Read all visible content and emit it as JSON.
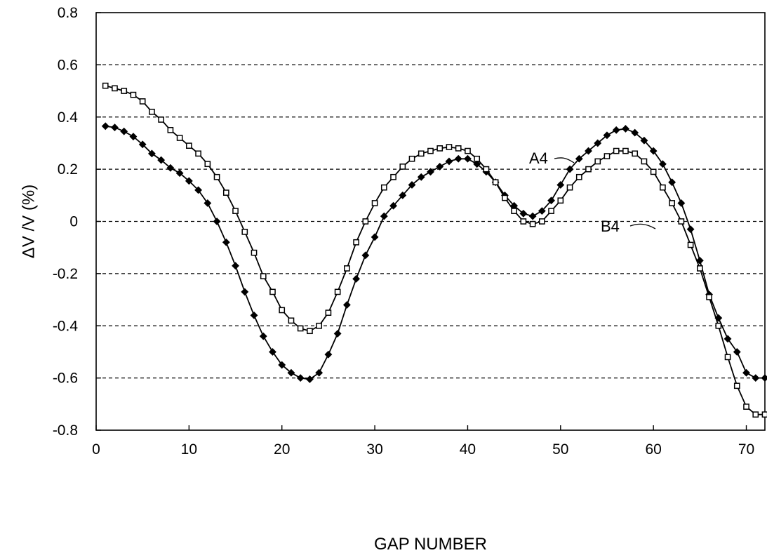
{
  "chart_data": {
    "type": "line",
    "title": "",
    "xlabel": "GAP NUMBER",
    "ylabel": "ΔV /V  (%)",
    "xlim": [
      0,
      72
    ],
    "ylim": [
      -0.8,
      0.8
    ],
    "x_ticks": [
      0,
      10,
      20,
      30,
      40,
      50,
      60,
      70
    ],
    "y_ticks": [
      -0.8,
      -0.6,
      -0.4,
      -0.2,
      0,
      0.2,
      0.4,
      0.6,
      0.8
    ],
    "x_tick_labels": [
      "0",
      "10",
      "20",
      "30",
      "40",
      "50",
      "60",
      "70"
    ],
    "y_tick_labels": [
      "-0.8",
      "-0.6",
      "-0.4",
      "-0.2",
      "0",
      "0.2",
      "0.4",
      "0.6",
      "0.8"
    ],
    "grid": "horizontal dashed",
    "series": [
      {
        "name": "A4",
        "marker": "filled-diamond",
        "color": "#000000",
        "x": [
          1,
          2,
          3,
          4,
          5,
          6,
          7,
          8,
          9,
          10,
          11,
          12,
          13,
          14,
          15,
          16,
          17,
          18,
          19,
          20,
          21,
          22,
          23,
          24,
          25,
          26,
          27,
          28,
          29,
          30,
          31,
          32,
          33,
          34,
          35,
          36,
          37,
          38,
          39,
          40,
          41,
          42,
          43,
          44,
          45,
          46,
          47,
          48,
          49,
          50,
          51,
          52,
          53,
          54,
          55,
          56,
          57,
          58,
          59,
          60,
          61,
          62,
          63,
          64,
          65,
          66,
          67,
          68,
          69,
          70,
          71,
          72
        ],
        "values": [
          0.365,
          0.36,
          0.345,
          0.325,
          0.295,
          0.26,
          0.235,
          0.205,
          0.185,
          0.155,
          0.12,
          0.07,
          0.0,
          -0.08,
          -0.17,
          -0.27,
          -0.36,
          -0.44,
          -0.5,
          -0.55,
          -0.58,
          -0.6,
          -0.605,
          -0.58,
          -0.51,
          -0.43,
          -0.32,
          -0.22,
          -0.13,
          -0.06,
          0.02,
          0.06,
          0.1,
          0.14,
          0.17,
          0.19,
          0.21,
          0.23,
          0.24,
          0.24,
          0.22,
          0.19,
          0.15,
          0.1,
          0.06,
          0.03,
          0.02,
          0.04,
          0.08,
          0.14,
          0.2,
          0.24,
          0.27,
          0.3,
          0.33,
          0.35,
          0.355,
          0.34,
          0.31,
          0.27,
          0.22,
          0.15,
          0.07,
          -0.03,
          -0.15,
          -0.28,
          -0.37,
          -0.45,
          -0.5,
          -0.58,
          -0.6,
          -0.6
        ]
      },
      {
        "name": "B4",
        "marker": "open-square",
        "color": "#000000",
        "x": [
          1,
          2,
          3,
          4,
          5,
          6,
          7,
          8,
          9,
          10,
          11,
          12,
          13,
          14,
          15,
          16,
          17,
          18,
          19,
          20,
          21,
          22,
          23,
          24,
          25,
          26,
          27,
          28,
          29,
          30,
          31,
          32,
          33,
          34,
          35,
          36,
          37,
          38,
          39,
          40,
          41,
          42,
          43,
          44,
          45,
          46,
          47,
          48,
          49,
          50,
          51,
          52,
          53,
          54,
          55,
          56,
          57,
          58,
          59,
          60,
          61,
          62,
          63,
          64,
          65,
          66,
          67,
          68,
          69,
          70,
          71,
          72
        ],
        "values": [
          0.52,
          0.51,
          0.5,
          0.485,
          0.46,
          0.42,
          0.39,
          0.35,
          0.32,
          0.29,
          0.26,
          0.22,
          0.17,
          0.11,
          0.04,
          -0.04,
          -0.12,
          -0.21,
          -0.27,
          -0.34,
          -0.38,
          -0.41,
          -0.42,
          -0.4,
          -0.35,
          -0.27,
          -0.18,
          -0.08,
          0.0,
          0.07,
          0.13,
          0.17,
          0.21,
          0.24,
          0.26,
          0.27,
          0.28,
          0.285,
          0.28,
          0.27,
          0.24,
          0.2,
          0.15,
          0.09,
          0.04,
          0.0,
          -0.01,
          0.0,
          0.04,
          0.08,
          0.13,
          0.17,
          0.2,
          0.23,
          0.25,
          0.27,
          0.27,
          0.26,
          0.23,
          0.19,
          0.13,
          0.07,
          0.0,
          -0.09,
          -0.18,
          -0.29,
          -0.4,
          -0.52,
          -0.63,
          -0.71,
          -0.74,
          -0.74
        ]
      }
    ],
    "annotations": [
      {
        "text": "A4",
        "series": "A4"
      },
      {
        "text": "B4",
        "series": "B4"
      }
    ]
  }
}
